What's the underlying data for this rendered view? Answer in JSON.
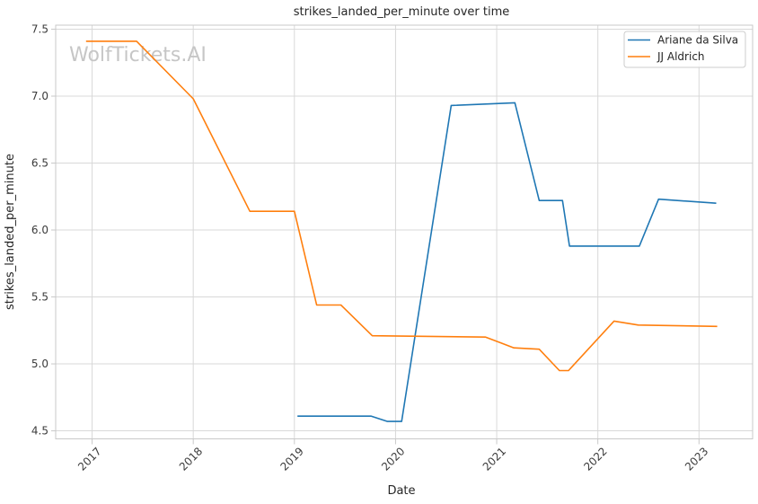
{
  "title": "strikes_landed_per_minute over time",
  "watermark": "WolfTickets.AI",
  "colors": {
    "background": "#ffffff",
    "grid": "#d8d8d8",
    "spine": "#c9c9c9",
    "text": "#262626",
    "watermark": "#c6c6c6",
    "legend_border": "#cccccc",
    "series_blue": "#1f77b4",
    "series_orange": "#ff7f0e"
  },
  "chart_data": {
    "type": "line",
    "title": "strikes_landed_per_minute over time",
    "xlabel": "Date",
    "ylabel": "strikes_landed_per_minute",
    "xlim": [
      2016.64,
      2023.53
    ],
    "ylim": [
      4.44,
      7.53
    ],
    "xticks": [
      2017,
      2018,
      2019,
      2020,
      2021,
      2022,
      2023
    ],
    "yticks": [
      4.5,
      5.0,
      5.5,
      6.0,
      6.5,
      7.0,
      7.5
    ],
    "grid": true,
    "legend_position": "upper right",
    "series": [
      {
        "name": "Ariane da Silva",
        "color": "#1f77b4",
        "points": [
          [
            2019.03,
            4.61
          ],
          [
            2019.76,
            4.61
          ],
          [
            2019.92,
            4.57
          ],
          [
            2020.06,
            4.57
          ],
          [
            2020.55,
            6.93
          ],
          [
            2021.18,
            6.95
          ],
          [
            2021.42,
            6.22
          ],
          [
            2021.65,
            6.22
          ],
          [
            2021.72,
            5.88
          ],
          [
            2022.41,
            5.88
          ],
          [
            2022.6,
            6.23
          ],
          [
            2023.17,
            6.2
          ]
        ]
      },
      {
        "name": "JJ Aldrich",
        "color": "#ff7f0e",
        "points": [
          [
            2016.94,
            7.41
          ],
          [
            2017.44,
            7.41
          ],
          [
            2018.0,
            6.98
          ],
          [
            2018.56,
            6.14
          ],
          [
            2019.0,
            6.14
          ],
          [
            2019.22,
            5.44
          ],
          [
            2019.46,
            5.44
          ],
          [
            2019.77,
            5.21
          ],
          [
            2020.89,
            5.2
          ],
          [
            2021.17,
            5.12
          ],
          [
            2021.42,
            5.11
          ],
          [
            2021.62,
            4.95
          ],
          [
            2021.71,
            4.95
          ],
          [
            2022.16,
            5.32
          ],
          [
            2022.4,
            5.29
          ],
          [
            2023.18,
            5.28
          ]
        ]
      }
    ]
  }
}
